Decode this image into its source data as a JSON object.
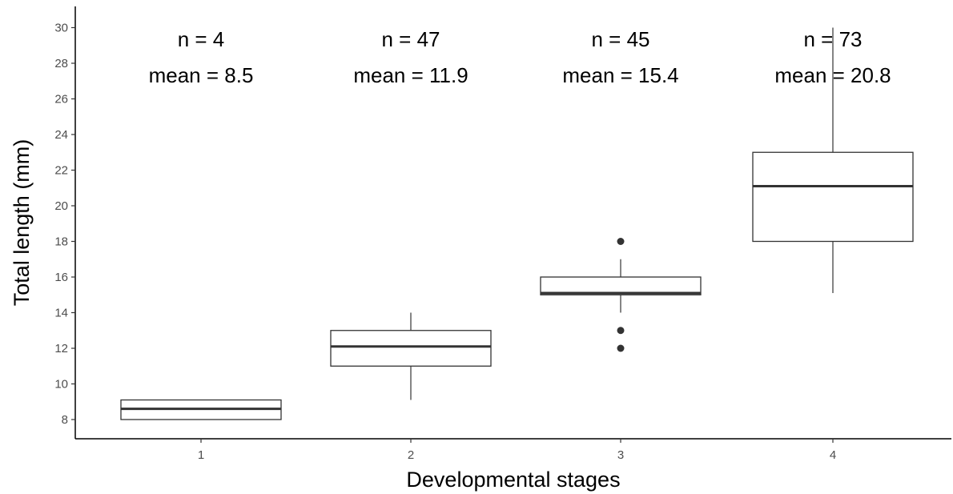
{
  "chart_data": {
    "type": "boxplot",
    "xlabel": "Developmental stages",
    "ylabel": "Total length (mm)",
    "ylim": [
      7,
      31
    ],
    "yticks": [
      8,
      10,
      12,
      14,
      16,
      18,
      20,
      22,
      24,
      26,
      28,
      30
    ],
    "grid": false,
    "categories": [
      "1",
      "2",
      "3",
      "4"
    ],
    "boxes": [
      {
        "category": "1",
        "min": 8,
        "q1": 8,
        "median": 8.6,
        "q3": 9.1,
        "max": 9.1,
        "outliers": []
      },
      {
        "category": "2",
        "min": 9.1,
        "q1": 11,
        "median": 12.1,
        "q3": 13,
        "max": 14,
        "outliers": []
      },
      {
        "category": "3",
        "min": 14,
        "q1": 15,
        "median": 15.1,
        "q3": 16,
        "max": 17,
        "outliers": [
          18,
          13,
          12
        ]
      },
      {
        "category": "4",
        "min": 15.1,
        "q1": 18,
        "median": 21.1,
        "q3": 23,
        "max": 30,
        "outliers": []
      }
    ],
    "annotations": [
      {
        "category": "1",
        "n_label": "n = 4",
        "mean_label": "mean = 8.5"
      },
      {
        "category": "2",
        "n_label": "n = 47",
        "mean_label": "mean = 11.9"
      },
      {
        "category": "3",
        "n_label": "n = 45",
        "mean_label": "mean = 15.4"
      },
      {
        "category": "4",
        "n_label": "n = 73",
        "mean_label": "mean = 20.8"
      }
    ]
  }
}
